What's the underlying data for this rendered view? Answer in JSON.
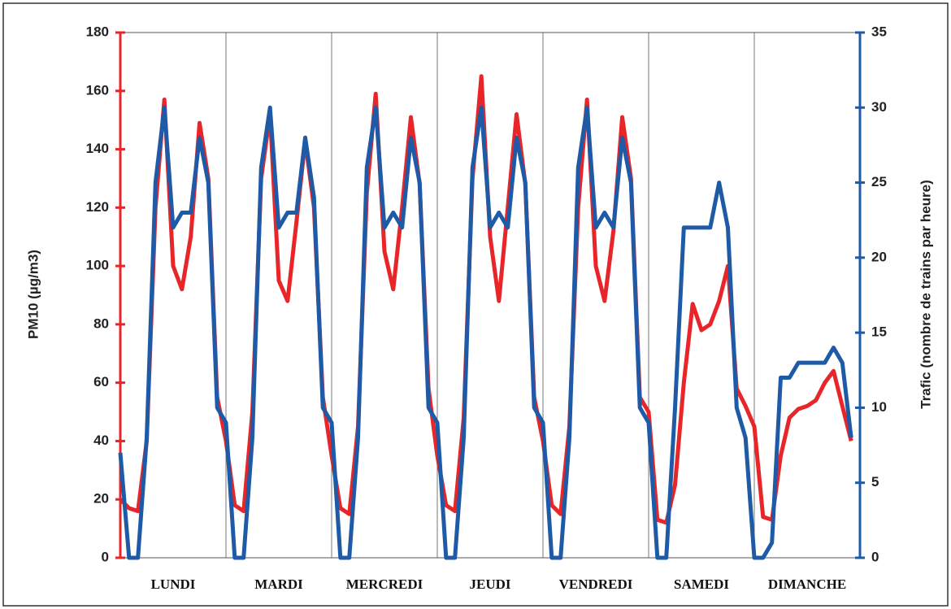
{
  "chart_data": {
    "type": "line",
    "y_label": "PM10 (µg/m3)",
    "y2_label": "Trafic (nombre de trains par heure)",
    "x": [
      0,
      2,
      4,
      6,
      8,
      10,
      12,
      14,
      16,
      18,
      20,
      22,
      24,
      26,
      28,
      30,
      32,
      34,
      36,
      38,
      40,
      42,
      44,
      46,
      48,
      50,
      52,
      54,
      56,
      58,
      60,
      62,
      64,
      66,
      68,
      70,
      72,
      74,
      76,
      78,
      80,
      82,
      84,
      86,
      88,
      90,
      92,
      94,
      96,
      98,
      100,
      102,
      104,
      106,
      108,
      110,
      112,
      114,
      116,
      118,
      120,
      122,
      124,
      126,
      128,
      130,
      132,
      134,
      136,
      138,
      140,
      142,
      144,
      146,
      148,
      150,
      152,
      154,
      156,
      158,
      160,
      162,
      164,
      166
    ],
    "xlim": [
      0,
      168
    ],
    "xticks": [
      {
        "value": 12,
        "label": "LUNDI"
      },
      {
        "value": 36,
        "label": "MARDI"
      },
      {
        "value": 60,
        "label": "MERCREDI"
      },
      {
        "value": 84,
        "label": "JEUDI"
      },
      {
        "value": 108,
        "label": "VENDREDI"
      },
      {
        "value": 132,
        "label": "SAMEDI"
      },
      {
        "value": 156,
        "label": "DIMANCHE"
      }
    ],
    "ylim": [
      0,
      180
    ],
    "yticks": [
      0,
      20,
      40,
      60,
      80,
      100,
      120,
      140,
      160,
      180
    ],
    "y2lim": [
      0,
      35
    ],
    "y2ticks": [
      0,
      5,
      10,
      15,
      20,
      25,
      30,
      35
    ],
    "series": [
      {
        "name": "PM10",
        "color": "#e8262a",
        "axis": "y",
        "values": [
          20,
          17,
          16,
          40,
          120,
          157,
          100,
          92,
          110,
          149,
          130,
          55,
          40,
          18,
          16,
          50,
          130,
          152,
          95,
          88,
          115,
          143,
          120,
          55,
          35,
          17,
          15,
          45,
          125,
          159,
          105,
          92,
          120,
          151,
          128,
          58,
          35,
          18,
          16,
          48,
          130,
          165,
          110,
          88,
          120,
          152,
          128,
          55,
          40,
          18,
          15,
          45,
          120,
          157,
          100,
          88,
          112,
          151,
          130,
          55,
          50,
          13,
          12,
          25,
          60,
          87,
          78,
          80,
          88,
          100,
          58,
          52,
          45,
          14,
          13,
          35,
          48,
          51,
          52,
          54,
          60,
          64,
          52,
          40
        ]
      },
      {
        "name": "Trafic",
        "color": "#1f5aa6",
        "axis": "y2",
        "values": [
          7,
          0,
          0,
          8,
          25,
          30,
          22,
          23,
          23,
          28,
          25,
          10,
          9,
          0,
          0,
          8,
          26,
          30,
          22,
          23,
          23,
          28,
          24,
          10,
          9,
          0,
          0,
          8,
          26,
          30,
          22,
          23,
          22,
          28,
          25,
          10,
          9,
          0,
          0,
          8,
          26,
          30,
          22,
          23,
          22,
          28,
          25,
          10,
          9,
          0,
          0,
          8,
          26,
          30,
          22,
          23,
          22,
          28,
          25,
          10,
          9,
          0,
          0,
          10,
          22,
          22,
          22,
          22,
          25,
          22,
          10,
          8,
          0,
          0,
          1,
          12,
          12,
          13,
          13,
          13,
          13,
          14,
          13,
          8
        ]
      }
    ]
  }
}
